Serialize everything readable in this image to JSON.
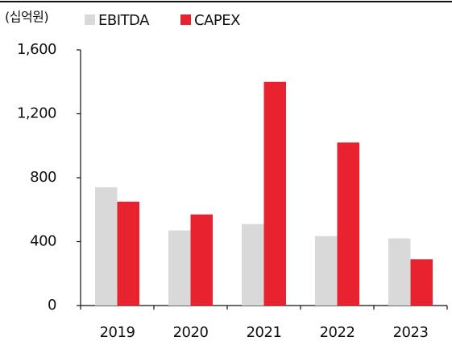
{
  "chart_data": {
    "type": "bar",
    "unit_label": "(십억원)",
    "categories": [
      "2019",
      "2020",
      "2021",
      "2022",
      "2023"
    ],
    "series": [
      {
        "name": "EBITDA",
        "color": "#d9d9d9",
        "values": [
          740,
          470,
          510,
          435,
          420
        ]
      },
      {
        "name": "CAPEX",
        "color": "#e8222f",
        "values": [
          650,
          570,
          1400,
          1020,
          290
        ]
      }
    ],
    "ylim": [
      0,
      1600
    ],
    "yticks": [
      0,
      {
        "value": 400,
        "label": "400"
      },
      {
        "value": 800,
        "label": "800"
      },
      {
        "value": 1200,
        "label": "1,200"
      },
      {
        "value": 1600,
        "label": "1,600"
      }
    ]
  }
}
